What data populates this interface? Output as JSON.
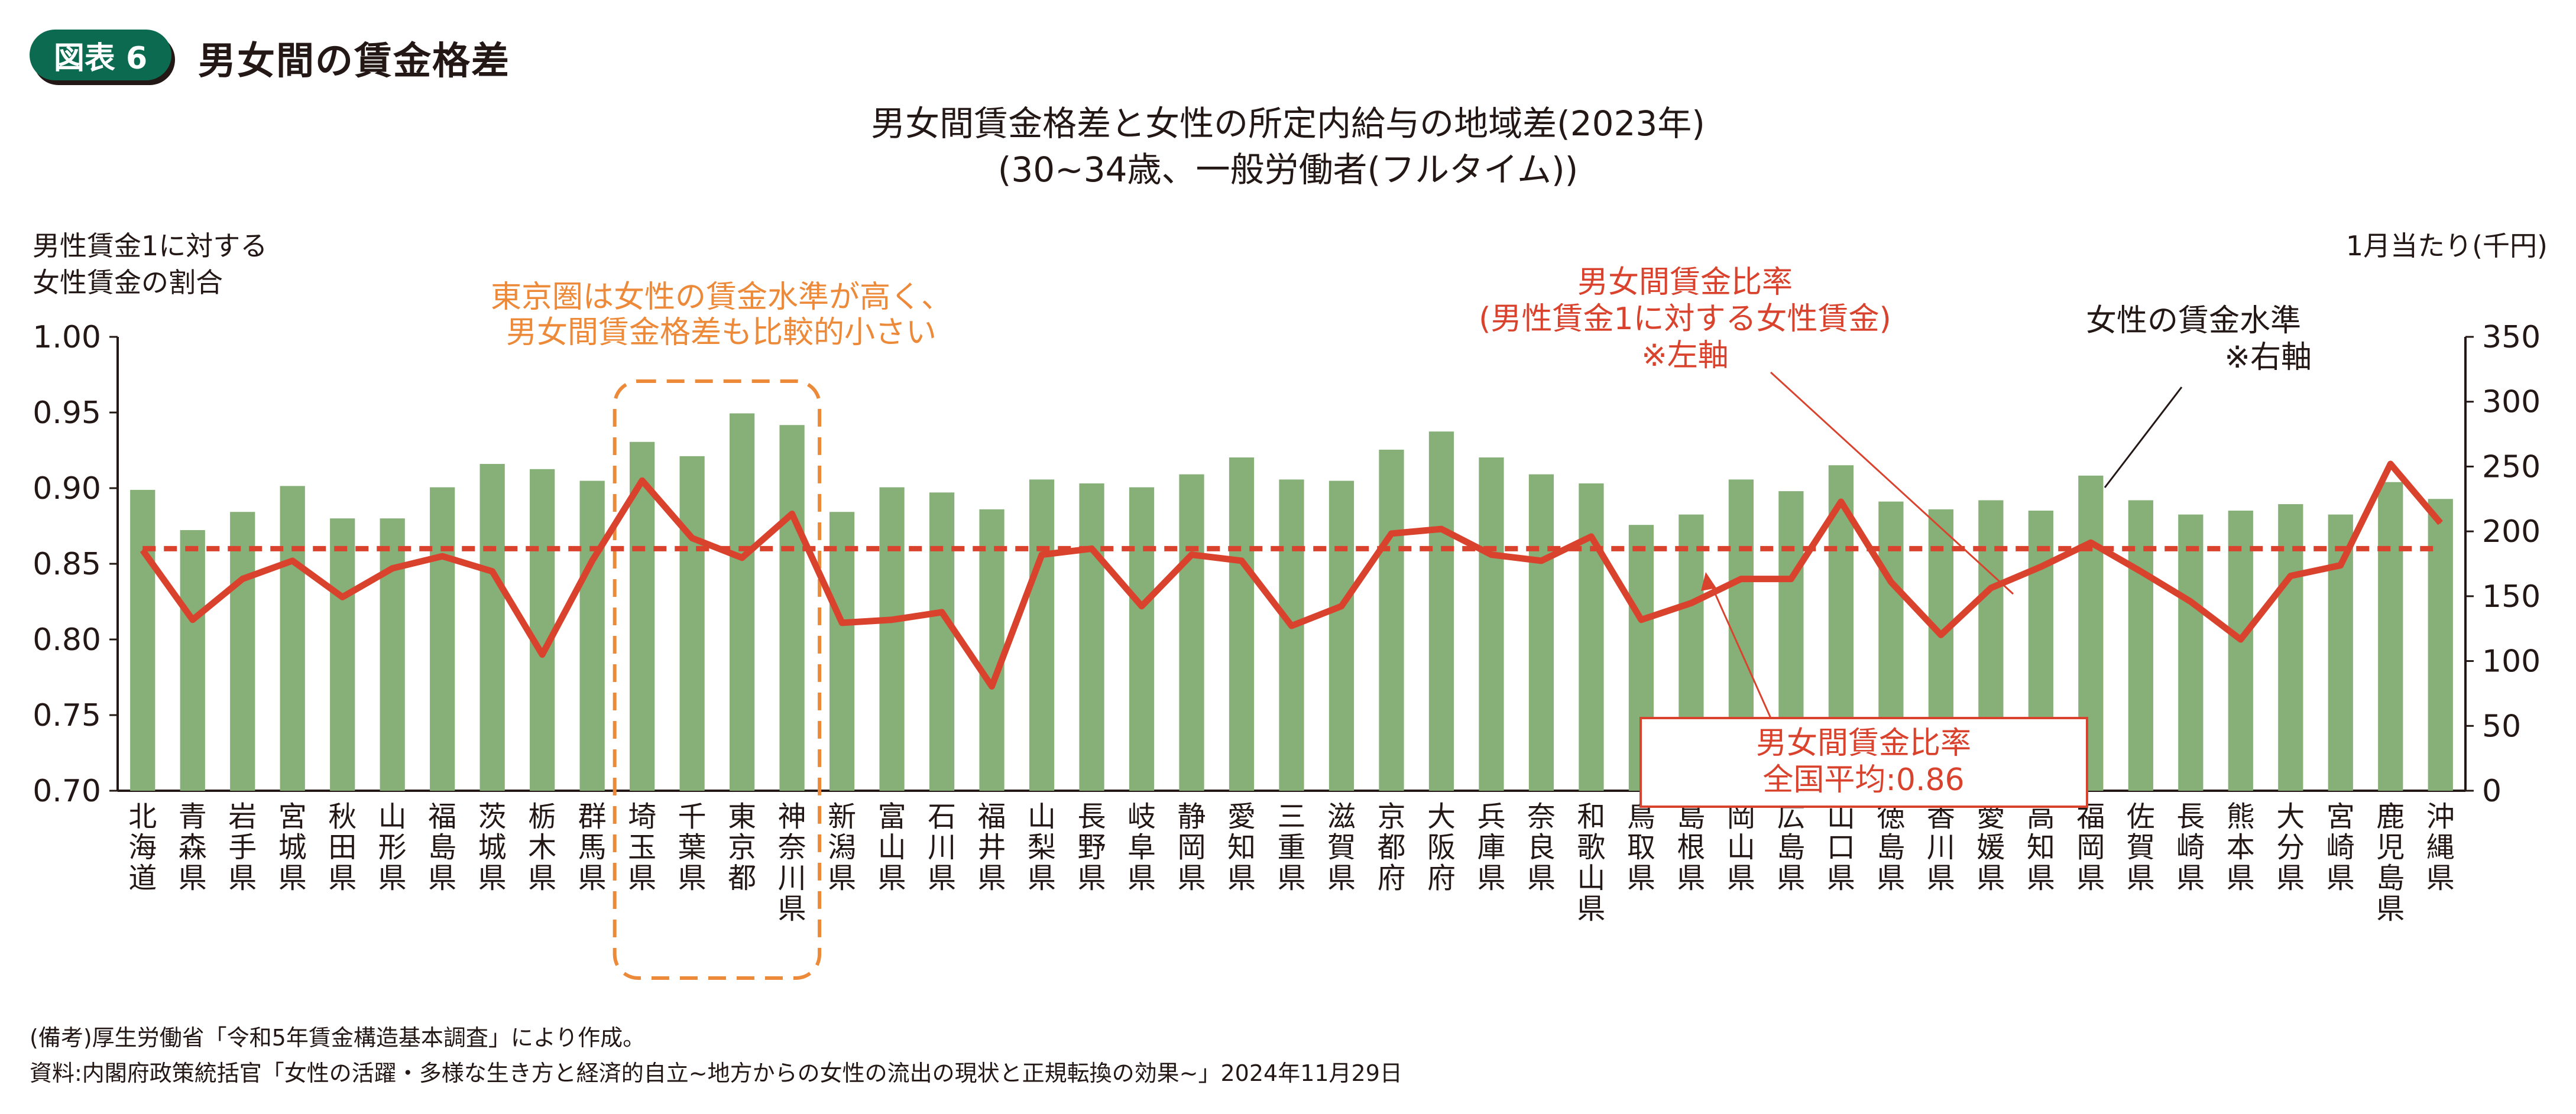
{
  "header": {
    "badge": "図表 6",
    "title": "男女間の賃金格差"
  },
  "chart_data": {
    "type": "bar+line",
    "title": "男女間賃金格差と女性の所定内給与の地域差(2023年)",
    "subtitle": "(30~34歳、一般労働者(フルタイム))",
    "left_axis_label": [
      "男性賃金1に対する",
      "女性賃金の割合"
    ],
    "right_axis_label": "1月当たり(千円)",
    "left_ylim": [
      0.7,
      1.0
    ],
    "left_ticks": [
      "1.00",
      "0.95",
      "0.90",
      "0.85",
      "0.80",
      "0.75",
      "0.70"
    ],
    "right_ylim": [
      0,
      350
    ],
    "right_ticks": [
      "350",
      "300",
      "250",
      "200",
      "150",
      "100",
      "50",
      "0"
    ],
    "categories": [
      "北海道",
      "青森県",
      "岩手県",
      "宮城県",
      "秋田県",
      "山形県",
      "福島県",
      "茨城県",
      "栃木県",
      "群馬県",
      "埼玉県",
      "千葉県",
      "東京都",
      "神奈川県",
      "新潟県",
      "富山県",
      "石川県",
      "福井県",
      "山梨県",
      "長野県",
      "岐阜県",
      "静岡県",
      "愛知県",
      "三重県",
      "滋賀県",
      "京都府",
      "大阪府",
      "兵庫県",
      "奈良県",
      "和歌山県",
      "鳥取県",
      "島根県",
      "岡山県",
      "広島県",
      "山口県",
      "徳島県",
      "香川県",
      "愛媛県",
      "高知県",
      "福岡県",
      "佐賀県",
      "長崎県",
      "熊本県",
      "大分県",
      "宮崎県",
      "鹿児島県",
      "沖縄県"
    ],
    "series": [
      {
        "name": "女性の賃金水準",
        "axis": "right",
        "kind": "bar",
        "color": "#86b078",
        "values": [
          232,
          201,
          215,
          235,
          210,
          210,
          234,
          252,
          248,
          239,
          269,
          258,
          291,
          282,
          215,
          234,
          230,
          217,
          240,
          237,
          234,
          244,
          257,
          240,
          239,
          263,
          277,
          257,
          244,
          237,
          205,
          213,
          240,
          231,
          251,
          223,
          217,
          224,
          216,
          243,
          224,
          213,
          216,
          221,
          213,
          238,
          225
        ]
      },
      {
        "name": "男女間賃金比率",
        "axis": "left",
        "kind": "line",
        "color": "#d9432e",
        "values": [
          0.859,
          0.813,
          0.84,
          0.852,
          0.828,
          0.847,
          0.855,
          0.845,
          0.79,
          0.852,
          0.905,
          0.867,
          0.854,
          0.883,
          0.811,
          0.813,
          0.818,
          0.769,
          0.856,
          0.86,
          0.822,
          0.856,
          0.852,
          0.809,
          0.822,
          0.87,
          0.873,
          0.856,
          0.852,
          0.868,
          0.813,
          0.824,
          0.84,
          0.84,
          0.891,
          0.838,
          0.803,
          0.834,
          0.848,
          0.864,
          0.845,
          0.825,
          0.8,
          0.842,
          0.849,
          0.916,
          0.877
        ]
      }
    ],
    "national_average": {
      "value": 0.86,
      "axis": "left",
      "style": "dashed",
      "color": "#d9432e"
    },
    "highlight_group": {
      "categories": [
        "埼玉県",
        "千葉県",
        "東京都",
        "神奈川県"
      ],
      "color": "#ec8a3a"
    },
    "annotations": {
      "tokyo": [
        "東京圏は女性の賃金水準が高く、",
        "男女間賃金格差も比較的小さい"
      ],
      "ratio": [
        "男女間賃金比率",
        "(男性賃金1に対する女性賃金)",
        "※左軸"
      ],
      "wage": [
        "女性の賃金水準",
        "※右軸"
      ],
      "average_box": [
        "男女間賃金比率",
        "全国平均:0.86"
      ]
    }
  },
  "footer": {
    "note": "(備考)厚生労働省「令和5年賃金構造基本調査」により作成。",
    "source": "資料:内閣府政策統括官「女性の活躍・多様な生き方と経済的自立~地方からの女性の流出の現状と正規転換の効果~」2024年11月29日"
  }
}
